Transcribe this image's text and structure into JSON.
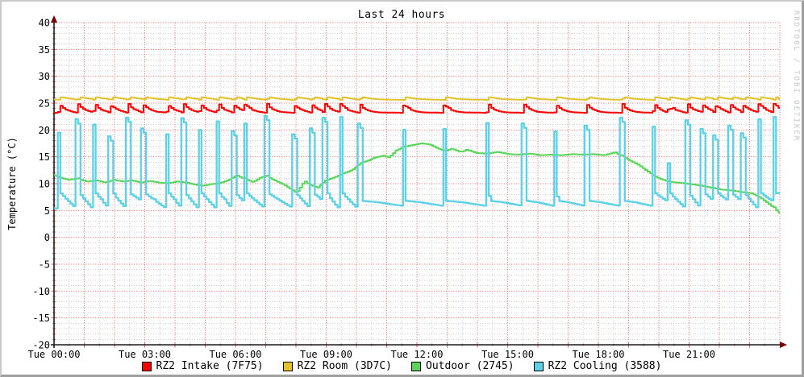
{
  "watermark": {
    "text": "RRDTOOL / TOBI OETIKER"
  },
  "colors": {
    "background": "#ffffff",
    "grid_minor": "#cdcdcd",
    "grid_major": "#ee8a8a",
    "axis": "#1a1a1a",
    "arrow": "#7a0000",
    "tick": "#d96060",
    "text": "#000000",
    "watermark": "#c6c6c6"
  },
  "chart_data": {
    "type": "line",
    "title": "Last 24 hours",
    "ylabel": "Temperature (°C)",
    "ylim": [
      -20,
      40
    ],
    "x_hours": [
      0,
      24
    ],
    "y_ticks": [
      40,
      35,
      30,
      25,
      20,
      15,
      10,
      5,
      0,
      -5,
      -10,
      -15,
      -20
    ],
    "x_ticks": [
      {
        "hour": 0,
        "label": "Tue 00:00"
      },
      {
        "hour": 3,
        "label": "Tue 03:00"
      },
      {
        "hour": 6,
        "label": "Tue 06:00"
      },
      {
        "hour": 9,
        "label": "Tue 09:00"
      },
      {
        "hour": 12,
        "label": "Tue 12:00"
      },
      {
        "hour": 15,
        "label": "Tue 15:00"
      },
      {
        "hour": 18,
        "label": "Tue 18:00"
      },
      {
        "hour": 21,
        "label": "Tue 21:00"
      }
    ],
    "grid": {
      "minor_deg": 1,
      "major_deg": 5,
      "minor_hours": 0.5,
      "major_hours": 1
    },
    "series": [
      {
        "name": "RZ2 Intake (7F75)",
        "color": "#ff0000",
        "role": "intake",
        "params": {
          "baseline": 23.2,
          "peak_base": 24.45,
          "peak_scale": 0.12,
          "decay": [
            [
              0.1,
              24.1
            ],
            [
              0.22,
              23.7
            ],
            [
              0.4,
              23.4
            ],
            [
              0.62,
              23.27
            ]
          ],
          "end": 23.3
        }
      },
      {
        "name": "RZ2 Room (3D7C)",
        "color": "#e4c22e",
        "role": "room",
        "params": {
          "baseline": 25.7,
          "pre_dip": 25.6,
          "bump": 26.1,
          "decay": [
            [
              0.14,
              25.95
            ],
            [
              0.32,
              25.8
            ],
            [
              0.55,
              25.7
            ]
          ],
          "end": 25.75
        }
      },
      {
        "name": "Outdoor (2745)",
        "color": "#58d658",
        "role": "outdoor",
        "params": {
          "points": [
            [
              0,
              11.6
            ],
            [
              0.25,
              11.1
            ],
            [
              0.5,
              10.7
            ],
            [
              0.8,
              11.0
            ],
            [
              1.1,
              10.4
            ],
            [
              1.45,
              10.6
            ],
            [
              1.7,
              10.2
            ],
            [
              2.0,
              10.7
            ],
            [
              2.3,
              10.4
            ],
            [
              2.6,
              10.6
            ],
            [
              2.9,
              10.2
            ],
            [
              3.2,
              10.5
            ],
            [
              3.5,
              10.2
            ],
            [
              3.8,
              10.1
            ],
            [
              4.1,
              10.4
            ],
            [
              4.4,
              10.2
            ],
            [
              4.7,
              9.8
            ],
            [
              4.95,
              9.6
            ],
            [
              5.2,
              9.9
            ],
            [
              5.5,
              10.1
            ],
            [
              5.8,
              10.7
            ],
            [
              6.05,
              11.5
            ],
            [
              6.3,
              11.0
            ],
            [
              6.6,
              10.3
            ],
            [
              6.85,
              11.1
            ],
            [
              7.05,
              11.5
            ],
            [
              7.3,
              10.6
            ],
            [
              7.6,
              9.9
            ],
            [
              7.85,
              9.0
            ],
            [
              8.05,
              8.3
            ],
            [
              8.3,
              10.4
            ],
            [
              8.55,
              9.6
            ],
            [
              8.75,
              9.3
            ],
            [
              9.0,
              10.6
            ],
            [
              9.3,
              11.2
            ],
            [
              9.6,
              11.9
            ],
            [
              9.9,
              12.6
            ],
            [
              10.15,
              13.8
            ],
            [
              10.4,
              14.3
            ],
            [
              10.65,
              14.9
            ],
            [
              10.9,
              15.2
            ],
            [
              11.1,
              14.9
            ],
            [
              11.35,
              16.2
            ],
            [
              11.6,
              16.9
            ],
            [
              11.9,
              17.2
            ],
            [
              12.15,
              17.5
            ],
            [
              12.45,
              17.3
            ],
            [
              12.7,
              16.6
            ],
            [
              12.95,
              16.1
            ],
            [
              13.2,
              16.5
            ],
            [
              13.45,
              15.9
            ],
            [
              13.7,
              16.3
            ],
            [
              14.0,
              15.7
            ],
            [
              14.35,
              15.6
            ],
            [
              14.7,
              15.9
            ],
            [
              15.05,
              15.5
            ],
            [
              15.4,
              15.4
            ],
            [
              15.75,
              15.6
            ],
            [
              16.1,
              15.3
            ],
            [
              16.45,
              15.4
            ],
            [
              16.8,
              15.3
            ],
            [
              17.15,
              15.5
            ],
            [
              17.5,
              15.4
            ],
            [
              17.85,
              15.5
            ],
            [
              18.2,
              15.3
            ],
            [
              18.55,
              15.8
            ],
            [
              18.8,
              15.2
            ],
            [
              19.1,
              14.2
            ],
            [
              19.35,
              13.5
            ],
            [
              19.6,
              12.5
            ],
            [
              19.85,
              11.5
            ],
            [
              20.15,
              10.7
            ],
            [
              20.45,
              10.3
            ],
            [
              20.8,
              10.1
            ],
            [
              21.1,
              9.9
            ],
            [
              21.45,
              9.6
            ],
            [
              21.8,
              9.2
            ],
            [
              22.1,
              8.9
            ],
            [
              22.45,
              8.7
            ],
            [
              22.8,
              8.4
            ],
            [
              23.1,
              8.2
            ],
            [
              23.35,
              7.5
            ],
            [
              23.6,
              6.5
            ],
            [
              23.8,
              5.6
            ],
            [
              23.95,
              4.9
            ],
            [
              24,
              4.6
            ]
          ]
        }
      },
      {
        "name": "RZ2 Cooling (3588)",
        "color": "#5dd2e6",
        "role": "cooling",
        "params": {
          "start": 5.4,
          "end": 8.3,
          "shelf_normal": 8.2,
          "shelf_sparse": 6.8,
          "settle_normal": 5.6,
          "settle_sparse": 5.9,
          "sparse_gap_hours": 1.0,
          "spikes": [
            [
              0.15,
              19.5
            ],
            [
              0.77,
              22.0
            ],
            [
              1.31,
              21.0
            ],
            [
              1.86,
              18.8
            ],
            [
              2.43,
              22.3
            ],
            [
              2.94,
              20.3
            ],
            [
              3.73,
              19.2
            ],
            [
              4.27,
              22.2
            ],
            [
              4.81,
              20.0
            ],
            [
              5.39,
              21.6
            ],
            [
              5.93,
              19.8
            ],
            [
              6.3,
              21.2
            ],
            [
              7.01,
              22.6
            ],
            [
              7.93,
              19.2
            ],
            [
              8.51,
              20.3
            ],
            [
              8.95,
              22.3
            ],
            [
              9.46,
              22.4
            ],
            [
              10.08,
              21.2
            ],
            [
              11.55,
              20.0
            ],
            [
              12.88,
              20.2
            ],
            [
              14.32,
              21.3
            ],
            [
              15.53,
              21.2
            ],
            [
              16.57,
              19.7
            ],
            [
              17.59,
              20.8
            ],
            [
              18.75,
              22.3
            ],
            [
              19.81,
              20.6
            ],
            [
              20.3,
              13.8
            ],
            [
              20.92,
              21.8
            ],
            [
              21.44,
              20.2
            ],
            [
              21.86,
              19.0
            ],
            [
              22.35,
              20.8
            ],
            [
              22.77,
              19.4
            ],
            [
              23.3,
              22.0
            ],
            [
              23.8,
              22.4
            ]
          ]
        }
      }
    ]
  }
}
